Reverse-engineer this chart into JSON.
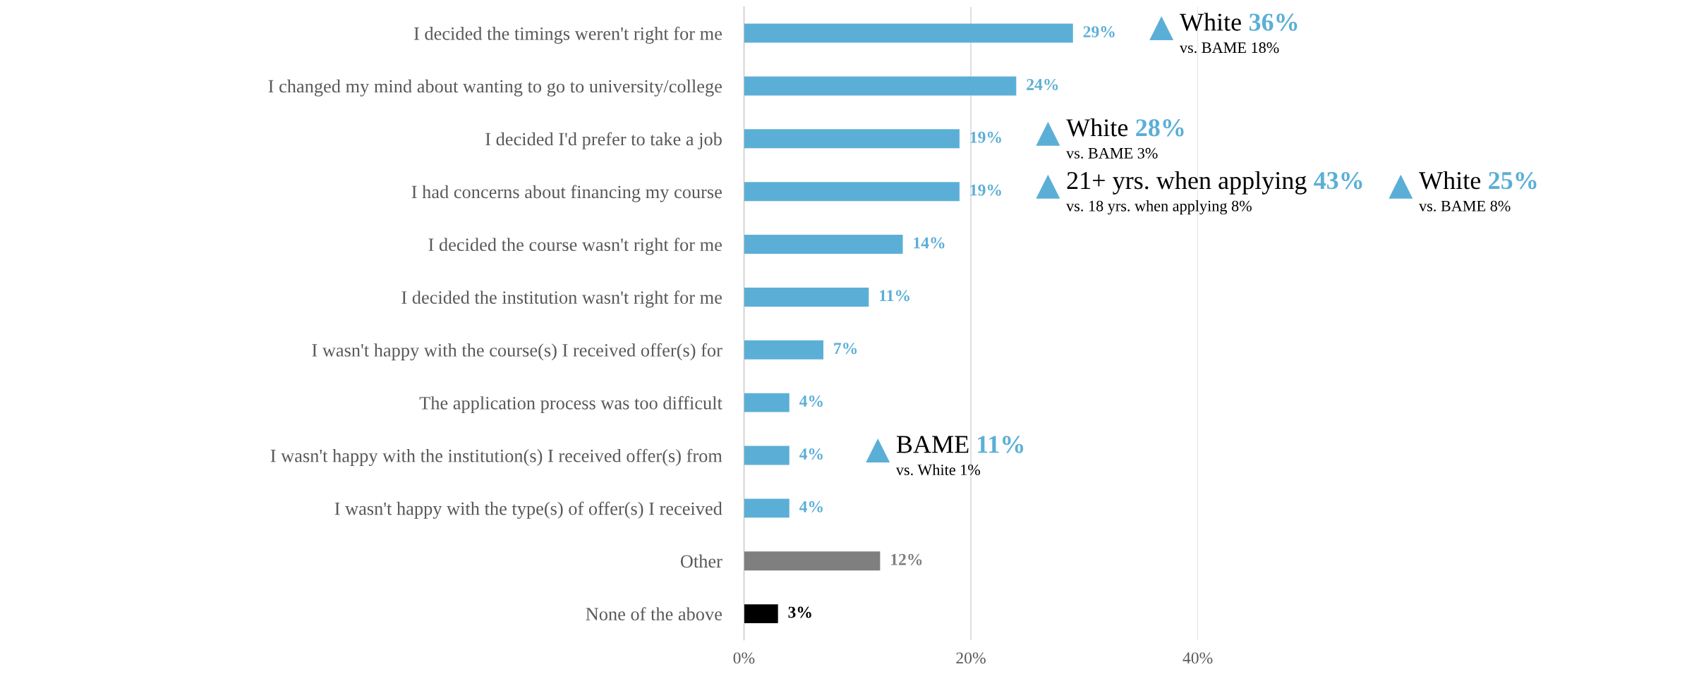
{
  "chart_data": {
    "type": "bar",
    "orientation": "horizontal",
    "categories": [
      "I decided the timings weren't right for me",
      "I changed my mind about wanting to go to university/college",
      "I decided I'd prefer to take a job",
      "I had concerns about financing my course",
      "I decided the course wasn't right for me",
      "I decided the institution wasn't right for me",
      "I wasn't happy with the course(s) I received offer(s) for",
      "The application process was too difficult",
      "I wasn't happy with the institution(s) I received offer(s) from",
      "I wasn't happy with the type(s) of offer(s) I received",
      "Other",
      "None of the above"
    ],
    "values": [
      29,
      24,
      19,
      19,
      14,
      11,
      7,
      4,
      4,
      4,
      12,
      3
    ],
    "colors": [
      "#5bafd6",
      "#5bafd6",
      "#5bafd6",
      "#5bafd6",
      "#5bafd6",
      "#5bafd6",
      "#5bafd6",
      "#5bafd6",
      "#5bafd6",
      "#5bafd6",
      "#7f7f7f",
      "#000000"
    ],
    "value_labels": [
      "29%",
      "24%",
      "19%",
      "19%",
      "14%",
      "11%",
      "7%",
      "4%",
      "4%",
      "4%",
      "12%",
      "3%"
    ],
    "xlim": [
      0,
      40
    ],
    "xticks": [
      {
        "value": 0,
        "label": "0%"
      },
      {
        "value": 20,
        "label": "20%"
      },
      {
        "value": 40,
        "label": "40%"
      }
    ],
    "grid": "x",
    "annotations": [
      "White 36%",
      "vs. BAME 18%",
      "White 28%",
      "vs. BAME 3%",
      "21+ yrs. when applying 43%",
      "vs. 18 yrs. when applying 8%",
      "White 25%",
      "vs. BAME 8%",
      "BAME 11%",
      "vs. White 1%"
    ]
  }
}
